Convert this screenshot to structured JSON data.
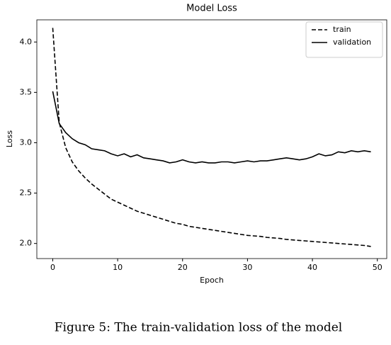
{
  "chart_data": {
    "type": "line",
    "title": "Model Loss",
    "xlabel": "Epoch",
    "ylabel": "Loss",
    "x": [
      0,
      1,
      2,
      3,
      4,
      5,
      6,
      7,
      8,
      9,
      10,
      11,
      12,
      13,
      14,
      15,
      16,
      17,
      18,
      19,
      20,
      21,
      22,
      23,
      24,
      25,
      26,
      27,
      28,
      29,
      30,
      31,
      32,
      33,
      34,
      35,
      36,
      37,
      38,
      39,
      40,
      41,
      42,
      43,
      44,
      45,
      46,
      47,
      48,
      49
    ],
    "series": [
      {
        "name": "train",
        "color": "#000000",
        "linestyle": "dashed",
        "values": [
          4.14,
          3.2,
          2.95,
          2.81,
          2.72,
          2.65,
          2.59,
          2.54,
          2.49,
          2.44,
          2.41,
          2.38,
          2.35,
          2.32,
          2.3,
          2.28,
          2.26,
          2.24,
          2.22,
          2.2,
          2.19,
          2.17,
          2.16,
          2.15,
          2.14,
          2.13,
          2.12,
          2.11,
          2.1,
          2.09,
          2.08,
          2.075,
          2.07,
          2.06,
          2.055,
          2.05,
          2.04,
          2.035,
          2.03,
          2.025,
          2.02,
          2.015,
          2.01,
          2.005,
          2.0,
          1.995,
          1.99,
          1.985,
          1.98,
          1.97
        ]
      },
      {
        "name": "validation",
        "color": "#000000",
        "linestyle": "solid",
        "values": [
          3.51,
          3.19,
          3.1,
          3.04,
          3.0,
          2.98,
          2.94,
          2.93,
          2.92,
          2.89,
          2.87,
          2.89,
          2.86,
          2.88,
          2.85,
          2.84,
          2.83,
          2.82,
          2.8,
          2.81,
          2.83,
          2.81,
          2.8,
          2.81,
          2.8,
          2.8,
          2.81,
          2.81,
          2.8,
          2.81,
          2.82,
          2.81,
          2.82,
          2.82,
          2.83,
          2.84,
          2.85,
          2.84,
          2.83,
          2.84,
          2.86,
          2.89,
          2.87,
          2.88,
          2.91,
          2.9,
          2.92,
          2.91,
          2.92,
          2.91
        ]
      }
    ],
    "xlim": [
      -2.45,
      51.45
    ],
    "xticks": [
      0,
      10,
      20,
      30,
      40,
      50
    ],
    "ylim": [
      1.85,
      4.22
    ],
    "yticks": [
      {
        "value": 2,
        "label": "2.0"
      },
      {
        "value": 2.5,
        "label": "2.5"
      },
      {
        "value": 3,
        "label": "3.0"
      },
      {
        "value": 3.5,
        "label": "3.5"
      },
      {
        "value": 4,
        "label": "4.0"
      }
    ],
    "legend": "upper right"
  },
  "caption": "Figure 5: The train-validation loss of the model"
}
